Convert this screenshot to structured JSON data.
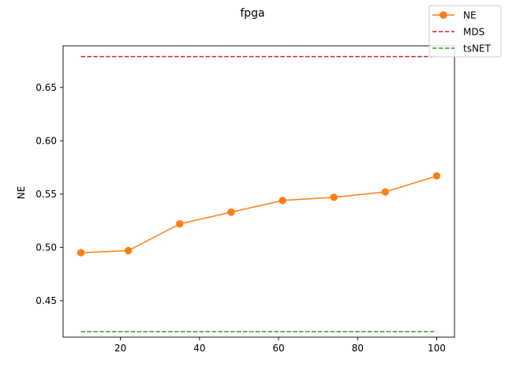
{
  "chart_data": {
    "type": "line",
    "title": "fpga",
    "xlabel": "",
    "ylabel": "NE",
    "xlim": [
      5.5,
      104.5
    ],
    "ylim": [
      0.4158,
      0.6891
    ],
    "x_ticks": [
      20,
      40,
      60,
      80,
      100
    ],
    "y_ticks": [
      0.45,
      0.5,
      0.55,
      0.6,
      0.65
    ],
    "x_tick_labels": [
      "20",
      "40",
      "60",
      "80",
      "100"
    ],
    "y_tick_labels": [
      "0.45",
      "0.50",
      "0.55",
      "0.60",
      "0.65"
    ],
    "grid": false,
    "legend_position": "top-right",
    "series": [
      {
        "name": "NE",
        "color": "#ff7f0e",
        "style": "solid",
        "marker": "circle",
        "x": [
          10,
          22,
          35,
          48,
          61,
          74,
          87,
          100
        ],
        "values": [
          0.495,
          0.497,
          0.522,
          0.533,
          0.544,
          0.547,
          0.552,
          0.567
        ]
      },
      {
        "name": "MDS",
        "color": "#d62728",
        "style": "dashed",
        "x": [
          10,
          100
        ],
        "values": [
          0.679,
          0.679
        ]
      },
      {
        "name": "tsNET",
        "color": "#2ca02c",
        "style": "dashed",
        "x": [
          10,
          100
        ],
        "values": [
          0.421,
          0.421
        ]
      }
    ]
  }
}
